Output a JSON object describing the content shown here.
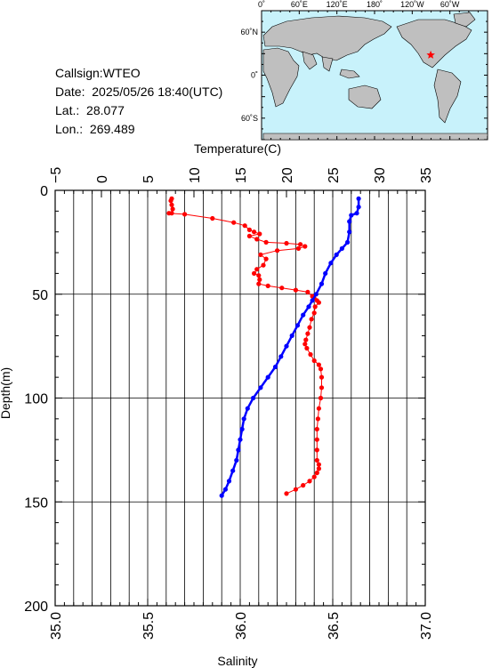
{
  "info": {
    "callsign": "Callsign:WTEO",
    "date_label": "Date:",
    "date_value": "2025/05/26 18:40(UTC)",
    "lat_label": "Lat.:",
    "lat_value": "28.077",
    "lon_label": "Lon.:",
    "lon_value": "269.489"
  },
  "map": {
    "top_labels": [
      "0˚",
      "60˚E",
      "120˚E",
      "180˚",
      "120˚W",
      "60˚W"
    ],
    "left_labels": [
      "60˚N",
      "0˚",
      "60˚S"
    ],
    "ocean_color": "#c8f2fb",
    "land_color": "#bfbfbf",
    "marker_color": "#ff0000"
  },
  "chart_data": {
    "type": "line",
    "xlabel_top": "Temperature(C)",
    "xlabel_bottom": "Salinity",
    "ylabel": "Depth(m)",
    "temperature_axis": {
      "range": [
        -5,
        35
      ],
      "ticks": [
        "−5",
        "0",
        "5",
        "10",
        "15",
        "20",
        "25",
        "30",
        "35"
      ]
    },
    "salinity_axis": {
      "range": [
        35.0,
        37.0
      ],
      "ticks": [
        "35.0",
        "35.5",
        "36.0",
        "36.5",
        "37.0"
      ]
    },
    "depth_axis": {
      "range": [
        0,
        200
      ],
      "inverted": true,
      "ticks": [
        "0",
        "50",
        "100",
        "150",
        "200"
      ]
    },
    "grid": true,
    "series": [
      {
        "color": "#ff0000",
        "axis": "temperature",
        "points": [
          [
            7.6,
            4
          ],
          [
            7.5,
            5
          ],
          [
            7.6,
            7
          ],
          [
            7.7,
            9
          ],
          [
            7.6,
            11
          ],
          [
            7.3,
            11
          ],
          [
            9.0,
            11.5
          ],
          [
            12.0,
            13.5
          ],
          [
            14.3,
            15.5
          ],
          [
            15.5,
            17
          ],
          [
            16.0,
            19
          ],
          [
            16.5,
            20
          ],
          [
            17.1,
            21
          ],
          [
            16.0,
            22
          ],
          [
            16.8,
            23.5
          ],
          [
            17.8,
            25
          ],
          [
            20.0,
            25.5
          ],
          [
            21.5,
            26
          ],
          [
            22.0,
            27
          ],
          [
            21.3,
            28
          ],
          [
            19.0,
            29
          ],
          [
            17.2,
            31
          ],
          [
            17.8,
            33
          ],
          [
            17.5,
            36
          ],
          [
            16.8,
            38
          ],
          [
            16.5,
            40
          ],
          [
            17.0,
            41
          ],
          [
            17.1,
            43
          ],
          [
            17.0,
            45
          ],
          [
            18.0,
            46
          ],
          [
            19.5,
            47
          ],
          [
            21.0,
            48
          ],
          [
            22.3,
            49
          ],
          [
            22.8,
            51
          ],
          [
            23.0,
            52
          ],
          [
            23.3,
            53
          ],
          [
            23.5,
            54
          ],
          [
            23.1,
            56
          ],
          [
            23.0,
            59
          ],
          [
            22.7,
            62
          ],
          [
            22.5,
            66
          ],
          [
            22.3,
            69
          ],
          [
            22.1,
            72
          ],
          [
            22.0,
            74
          ],
          [
            22.2,
            76
          ],
          [
            22.6,
            79
          ],
          [
            23.0,
            82
          ],
          [
            23.5,
            84
          ],
          [
            23.7,
            86
          ],
          [
            23.8,
            90
          ],
          [
            23.8,
            95
          ],
          [
            23.7,
            100
          ],
          [
            23.5,
            105
          ],
          [
            23.4,
            110
          ],
          [
            23.3,
            115
          ],
          [
            23.3,
            120
          ],
          [
            23.3,
            125
          ],
          [
            23.3,
            130
          ],
          [
            23.5,
            132
          ],
          [
            23.5,
            134
          ],
          [
            23.3,
            136
          ],
          [
            23.0,
            138
          ],
          [
            22.5,
            140
          ],
          [
            21.8,
            142
          ],
          [
            21.0,
            144
          ],
          [
            20.0,
            146
          ]
        ]
      },
      {
        "color": "#0000ff",
        "axis": "salinity",
        "points": [
          [
            36.64,
            4
          ],
          [
            36.64,
            8
          ],
          [
            36.63,
            11
          ],
          [
            36.6,
            12
          ],
          [
            36.59,
            15
          ],
          [
            36.59,
            20
          ],
          [
            36.58,
            25
          ],
          [
            36.55,
            28
          ],
          [
            36.52,
            31
          ],
          [
            36.49,
            35
          ],
          [
            36.46,
            40
          ],
          [
            36.44,
            45
          ],
          [
            36.41,
            50
          ],
          [
            36.39,
            53
          ],
          [
            36.37,
            56
          ],
          [
            36.34,
            60
          ],
          [
            36.31,
            65
          ],
          [
            36.28,
            70
          ],
          [
            36.25,
            75
          ],
          [
            36.22,
            80
          ],
          [
            36.19,
            85
          ],
          [
            36.15,
            90
          ],
          [
            36.11,
            95
          ],
          [
            36.07,
            100
          ],
          [
            36.04,
            105
          ],
          [
            36.02,
            110
          ],
          [
            36.01,
            115
          ],
          [
            36.0,
            120
          ],
          [
            35.99,
            125
          ],
          [
            35.98,
            130
          ],
          [
            35.96,
            135
          ],
          [
            35.94,
            140
          ],
          [
            35.92,
            144
          ],
          [
            35.9,
            147
          ]
        ]
      }
    ]
  }
}
